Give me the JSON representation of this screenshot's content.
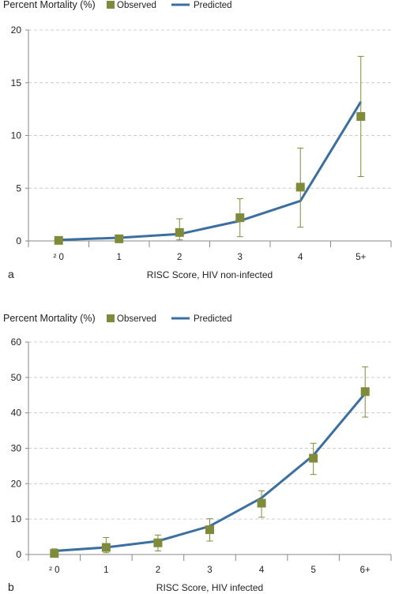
{
  "colors": {
    "observed": "#7f8b3a",
    "predicted": "#3b6fa0",
    "axis": "#888888",
    "grid": "#cccccc"
  },
  "chart_data": [
    {
      "type": "line",
      "panel_label": "a",
      "ylabel": "Percent Mortality (%)",
      "xlabel": "RISC Score, HIV non-infected",
      "categories": [
        "² 0",
        "1",
        "2",
        "3",
        "4",
        "5+"
      ],
      "ylim": [
        0,
        20
      ],
      "yticks": [
        0,
        5,
        10,
        15,
        20
      ],
      "grid": "horizontal dashed",
      "legend": "top",
      "series": [
        {
          "name": "Observed",
          "kind": "marker",
          "values": [
            0.05,
            0.2,
            0.8,
            2.2,
            5.1,
            11.8
          ],
          "err_low": [
            0.0,
            0.0,
            0.1,
            0.4,
            1.3,
            6.1
          ],
          "err_high": [
            0.1,
            0.5,
            2.1,
            4.0,
            8.8,
            17.5
          ]
        },
        {
          "name": "Predicted",
          "kind": "line",
          "values": [
            0.1,
            0.3,
            0.65,
            1.9,
            3.8,
            13.2
          ]
        }
      ]
    },
    {
      "type": "line",
      "panel_label": "b",
      "ylabel": "Percent Mortality (%)",
      "xlabel": "RISC Score, HIV infected",
      "categories": [
        "² 0",
        "1",
        "2",
        "3",
        "4",
        "5",
        "6+"
      ],
      "ylim": [
        0,
        60
      ],
      "yticks": [
        0,
        10,
        20,
        30,
        40,
        50,
        60
      ],
      "grid": "horizontal dashed",
      "legend": "top",
      "series": [
        {
          "name": "Observed",
          "kind": "marker",
          "values": [
            0.3,
            2.0,
            3.3,
            7.0,
            14.5,
            27.2,
            46.0
          ],
          "err_low": [
            0.0,
            0.5,
            1.0,
            3.8,
            10.5,
            22.6,
            38.8
          ],
          "err_high": [
            1.6,
            4.8,
            5.5,
            10.1,
            18.0,
            31.4,
            53.0
          ]
        },
        {
          "name": "Predicted",
          "kind": "line",
          "values": [
            1.0,
            2.0,
            3.8,
            8.0,
            16.0,
            28.0,
            45.5
          ]
        }
      ]
    }
  ]
}
